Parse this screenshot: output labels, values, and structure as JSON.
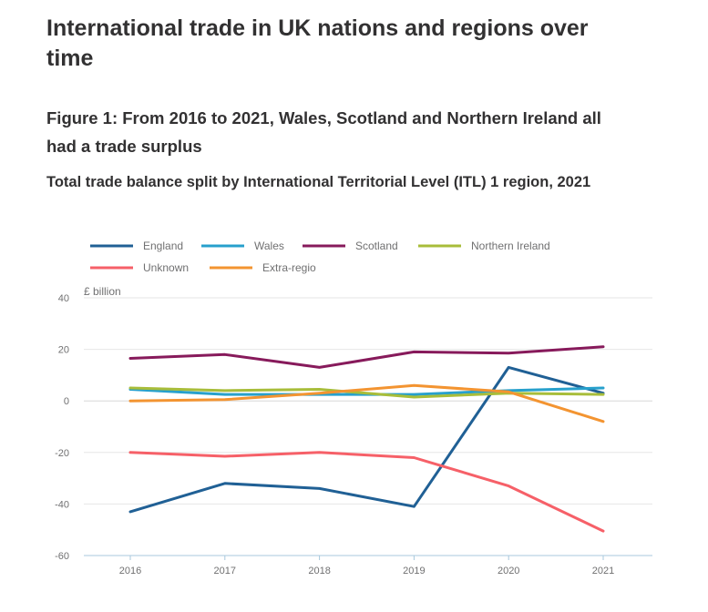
{
  "page": {
    "title": "International trade in UK nations and regions over time"
  },
  "figure": {
    "title": "Figure 1: From 2016 to 2021, Wales, Scotland and Northern Ireland all had a trade surplus",
    "subtitle": "Total trade balance split by International Territorial Level (ITL) 1 region, 2021"
  },
  "chart_data": {
    "type": "line",
    "title": "Figure 1: From 2016 to 2021, Wales, Scotland and Northern Ireland all had a trade surplus",
    "subtitle": "Total trade balance split by International Territorial Level (ITL) 1 region, 2021",
    "unit_label": "£ billion",
    "xlabel": "",
    "ylabel": "£ billion",
    "x": [
      "2016",
      "2017",
      "2018",
      "2019",
      "2020",
      "2021"
    ],
    "ylim": [
      -60,
      40
    ],
    "yticks": [
      -60,
      -40,
      -20,
      0,
      20,
      40
    ],
    "grid": true,
    "legend_position": "top-left",
    "series": [
      {
        "name": "England",
        "color": "#206095",
        "values": [
          -43,
          -32,
          -34,
          -41,
          13,
          3
        ]
      },
      {
        "name": "Wales",
        "color": "#27a0cc",
        "values": [
          4.5,
          2.5,
          2.5,
          2.5,
          4,
          5
        ]
      },
      {
        "name": "Scotland",
        "color": "#871a5b",
        "values": [
          16.5,
          18,
          13,
          19,
          18.5,
          21
        ]
      },
      {
        "name": "Northern Ireland",
        "color": "#a8bd3a",
        "values": [
          5,
          4,
          4.5,
          1.5,
          3,
          2.5
        ]
      },
      {
        "name": "Unknown",
        "color": "#f66068",
        "values": [
          -20,
          -21.5,
          -20,
          -22,
          -33,
          -50.5
        ]
      },
      {
        "name": "Extra-regio",
        "color": "#f39431",
        "values": [
          0,
          0.5,
          3,
          6,
          3.5,
          -8
        ]
      }
    ]
  }
}
